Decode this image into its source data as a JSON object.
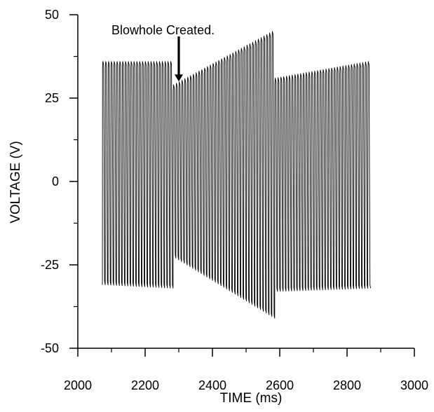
{
  "chart_data": {
    "type": "line",
    "title": "",
    "xlabel": "TIME  (ms)",
    "ylabel": "VOLTAGE  (V)",
    "xlim": [
      2000,
      3000
    ],
    "ylim": [
      -50,
      50
    ],
    "x_ticks": [
      2000,
      2200,
      2400,
      2600,
      2800,
      3000
    ],
    "x_tick_labels": [
      "2000",
      "2200",
      "2400",
      "2600",
      "2800",
      "3000"
    ],
    "y_ticks": [
      50,
      25,
      0,
      -25,
      -50
    ],
    "y_tick_labels": [
      "50",
      "25",
      "0",
      "-25",
      "-50"
    ],
    "grid": false,
    "legend": "none",
    "annotation": {
      "text": "Blowhole Created.",
      "x": 2300,
      "y": 30
    },
    "series": [
      {
        "name": "",
        "color": "#000000",
        "segments": [
          {
            "x_start": 2073,
            "x_end": 2283,
            "cycles": 25,
            "peak_start": 36,
            "peak_end": 36,
            "trough_start": -31,
            "trough_end": -32
          },
          {
            "x_start": 2283,
            "x_end": 2585,
            "cycles": 36,
            "peak_start": 29,
            "peak_end": 45,
            "trough_start": -23,
            "trough_end": -41
          },
          {
            "x_start": 2585,
            "x_end": 2870,
            "cycles": 34,
            "peak_start": 31,
            "peak_end": 36,
            "trough_start": -33,
            "trough_end": -32
          }
        ]
      }
    ]
  }
}
